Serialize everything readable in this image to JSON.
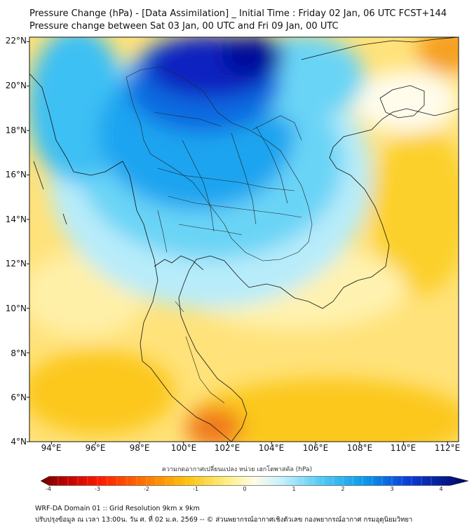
{
  "header": {
    "title_line1": "Pressure Change (hPa) - [Data Assimilation] _ Initial Time : Friday 02 Jan, 06 UTC FCST+144",
    "title_line2": "Pressure change between Sat 03 Jan, 00 UTC and Fri 09 Jan, 00 UTC"
  },
  "map": {
    "lat_labels": [
      "22°N",
      "20°N",
      "18°N",
      "16°N",
      "14°N",
      "12°N",
      "10°N",
      "8°N",
      "6°N",
      "4°N"
    ],
    "lon_labels": [
      "94°E",
      "96°E",
      "98°E",
      "100°E",
      "102°E",
      "104°E",
      "106°E",
      "108°E",
      "110°E",
      "112°E"
    ],
    "lat_range": [
      4,
      22.2
    ],
    "lon_range": [
      93,
      112.5
    ],
    "colors": {
      "strong_fall": "#0a14b8",
      "fall": "#1aa8f0",
      "light_fall": "#b8ecfa",
      "neutral": "#fdfbe6",
      "light_rise": "#ffe98a",
      "rise": "#fbc40a",
      "strong_rise": "#f26a10"
    }
  },
  "colorbar": {
    "title": "ความกดอากาศเปลี่ยนแปลง หน่วย เฮกโตพาสคัล (hPa)",
    "ticks": [
      "-4",
      "-3",
      "-2",
      "-1",
      "0",
      "1",
      "2",
      "3",
      "4"
    ],
    "range": [
      -4,
      4
    ]
  },
  "footer": {
    "line1": "WRF-DA Domain 01 :: Grid Resolution 9km x 9km",
    "line2": "ปรับปรุงข้อมูล ณ เวลา 13:00น. วัน ศ. ที่ 02 ม.ค. 2569 -- © ส่วนพยากรณ์อากาศเชิงตัวเลข กองพยากรณ์อากาศ กรมอุตุนิยมวิทยา"
  }
}
